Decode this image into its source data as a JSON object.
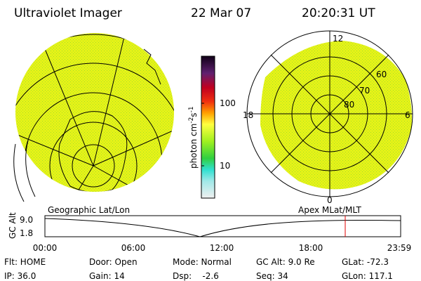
{
  "header": {
    "instrument": "Ultraviolet Imager",
    "date": "22 Mar 07",
    "time": "20:20:31 UT"
  },
  "colorbar": {
    "unit": "photon cm",
    "exp1": "-2",
    "unit2": "s",
    "exp2": "-1",
    "labels": [
      "100",
      "10"
    ]
  },
  "polar_labels": [
    "12",
    "18",
    "6",
    "0",
    "60",
    "70",
    "80"
  ],
  "orbit": {
    "left_label": "Geographic Lat/Lon",
    "right_label": "Apex MLat/MLT",
    "axis_title": "GC Alt",
    "y_labels": [
      "9.0",
      "1.8"
    ],
    "x_labels": [
      "00:00",
      "06:00",
      "12:00",
      "18:00",
      "23:59"
    ]
  },
  "info": [
    [
      "Flt: HOME",
      "Door: Open",
      "Mode: Normal",
      "GC Alt: 9.0 Re",
      "GLat: -72.3"
    ],
    [
      "IP: 36.0",
      "Gain: 14",
      "Dsp:    -2.6",
      "Seq: 34",
      "GLon: 117.1"
    ]
  ]
}
